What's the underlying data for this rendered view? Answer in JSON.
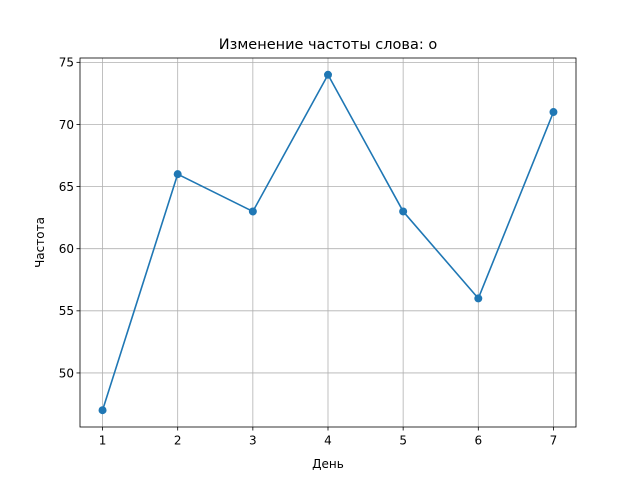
{
  "chart_data": {
    "type": "line",
    "title": "Изменение частоты слова: о",
    "xlabel": "День",
    "ylabel": "Частота",
    "x": [
      1,
      2,
      3,
      4,
      5,
      6,
      7
    ],
    "series": [
      {
        "values": [
          47,
          66,
          63,
          74,
          63,
          56,
          71
        ],
        "color": "#1f77b4",
        "marker": "circle"
      }
    ],
    "xticks": [
      1,
      2,
      3,
      4,
      5,
      6,
      7
    ],
    "yticks": [
      50,
      55,
      60,
      65,
      70,
      75
    ],
    "xlim": [
      0.7,
      7.3
    ],
    "ylim": [
      45.65,
      75.35
    ],
    "grid": true,
    "legend": "none"
  }
}
